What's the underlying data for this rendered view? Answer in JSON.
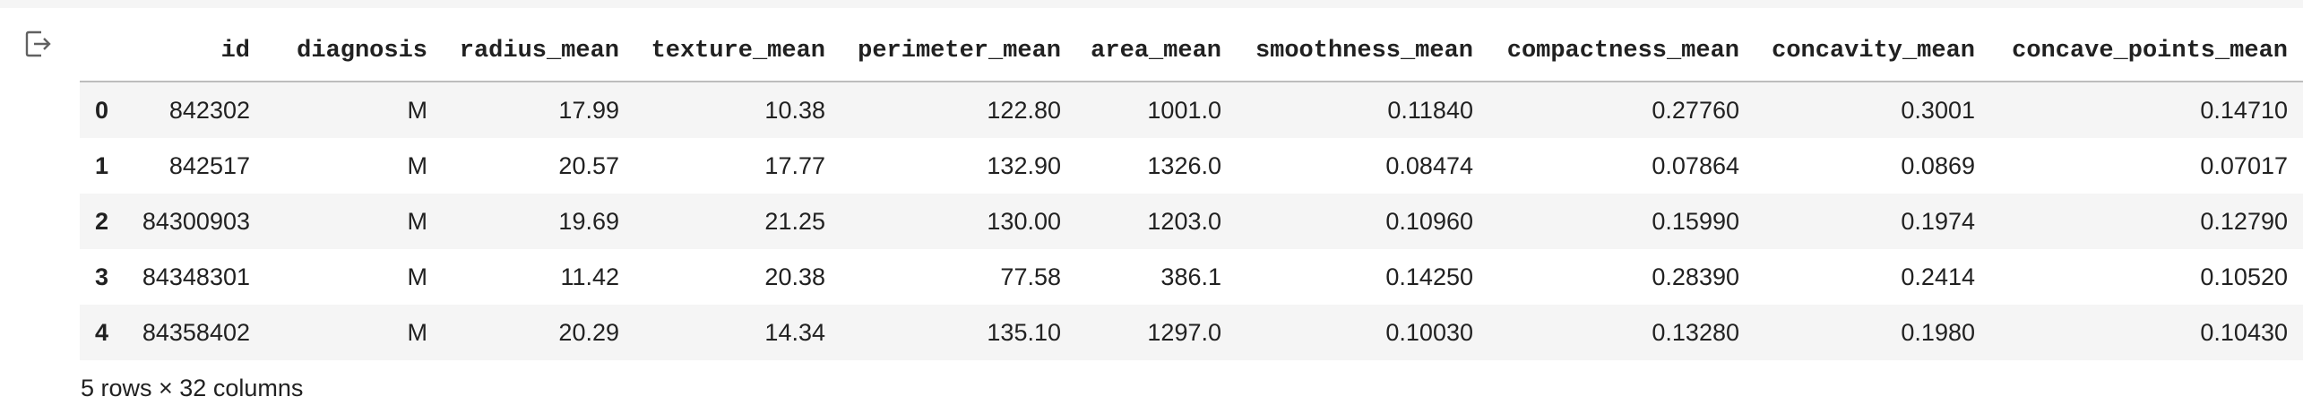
{
  "output_icon": "output-redirect-icon",
  "table": {
    "columns": [
      "",
      "id",
      "diagnosis",
      "radius_mean",
      "texture_mean",
      "perimeter_mean",
      "area_mean",
      "smoothness_mean",
      "compactness_mean",
      "concavity_mean",
      "concave_points_mean",
      "..."
    ],
    "rows": [
      [
        "0",
        "842302",
        "M",
        "17.99",
        "10.38",
        "122.80",
        "1001.0",
        "0.11840",
        "0.27760",
        "0.3001",
        "0.14710",
        ""
      ],
      [
        "1",
        "842517",
        "M",
        "20.57",
        "17.77",
        "132.90",
        "1326.0",
        "0.08474",
        "0.07864",
        "0.0869",
        "0.07017",
        ""
      ],
      [
        "2",
        "84300903",
        "M",
        "19.69",
        "21.25",
        "130.00",
        "1203.0",
        "0.10960",
        "0.15990",
        "0.1974",
        "0.12790",
        ""
      ],
      [
        "3",
        "84348301",
        "M",
        "11.42",
        "20.38",
        "77.58",
        "386.1",
        "0.14250",
        "0.28390",
        "0.2414",
        "0.10520",
        ""
      ],
      [
        "4",
        "84358402",
        "M",
        "20.29",
        "14.34",
        "135.10",
        "1297.0",
        "0.10030",
        "0.13280",
        "0.1980",
        "0.10430",
        ""
      ]
    ]
  },
  "footer": "5 rows × 32 columns"
}
